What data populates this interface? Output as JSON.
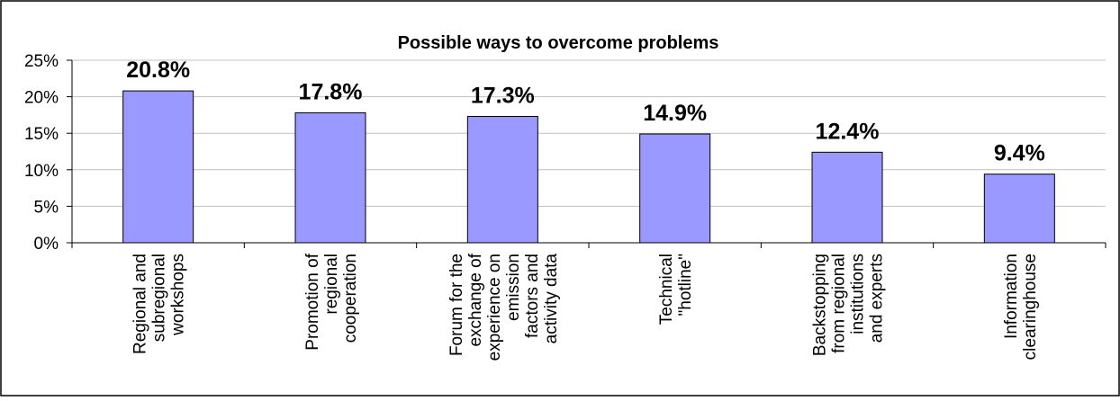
{
  "chart_data": {
    "type": "bar",
    "title": "Possible ways to overcome problems",
    "categories": [
      "Regional and subregional workshops",
      "Promotion of regional cooperation",
      "Forum for the exchange of experience on emission factors and activity data",
      "Technical \"hotline\"",
      "Backstopping from regional institutions and experts",
      "Information clearinghouse"
    ],
    "category_lines": [
      [
        "Regional and",
        "subregional",
        "workshops"
      ],
      [
        "Promotion of",
        "regional",
        "cooperation"
      ],
      [
        "Forum for the",
        "exchange of",
        "experience on",
        "emission",
        "factors and",
        "activity data"
      ],
      [
        "Technical",
        "\"hotline\""
      ],
      [
        "Backstopping",
        "from regional",
        "institutions",
        "and experts"
      ],
      [
        "Information",
        "clearinghouse"
      ]
    ],
    "values": [
      20.8,
      17.8,
      17.3,
      14.9,
      12.4,
      9.4
    ],
    "data_labels": [
      "20.8%",
      "17.8%",
      "17.3%",
      "14.9%",
      "12.4%",
      "9.4%"
    ],
    "ylim": [
      0,
      25
    ],
    "yticks": [
      0,
      5,
      10,
      15,
      20,
      25
    ],
    "ytick_labels": [
      "0%",
      "5%",
      "10%",
      "15%",
      "20%",
      "25%"
    ],
    "xlabel": "",
    "ylabel": "",
    "grid": true,
    "legend": "none",
    "colors": {
      "bar_fill": "#9999ff",
      "bar_stroke": "#000000",
      "grid": "#c0c0c0",
      "axis": "#000000",
      "border": "#000000"
    }
  }
}
